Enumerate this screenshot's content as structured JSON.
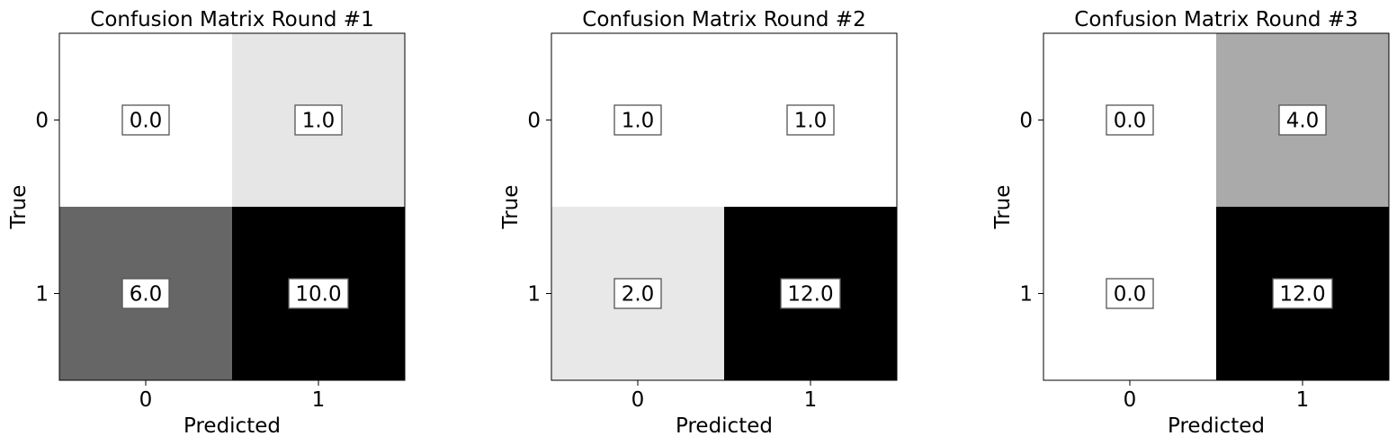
{
  "chart_data": [
    {
      "type": "heatmap",
      "title": "Confusion Matrix Round #1",
      "xlabel": "Predicted",
      "ylabel": "True",
      "x_categories": [
        "0",
        "1"
      ],
      "y_categories": [
        "0",
        "1"
      ],
      "values": [
        [
          0.0,
          1.0
        ],
        [
          6.0,
          10.0
        ]
      ],
      "value_labels": [
        [
          "0.0",
          "1.0"
        ],
        [
          "6.0",
          "10.0"
        ]
      ],
      "colormap": "Greys",
      "grid": false
    },
    {
      "type": "heatmap",
      "title": "Confusion Matrix Round #2",
      "xlabel": "Predicted",
      "ylabel": "True",
      "x_categories": [
        "0",
        "1"
      ],
      "y_categories": [
        "0",
        "1"
      ],
      "values": [
        [
          1.0,
          1.0
        ],
        [
          2.0,
          12.0
        ]
      ],
      "value_labels": [
        [
          "1.0",
          "1.0"
        ],
        [
          "2.0",
          "12.0"
        ]
      ],
      "colormap": "Greys",
      "grid": false
    },
    {
      "type": "heatmap",
      "title": "Confusion Matrix Round #3",
      "xlabel": "Predicted",
      "ylabel": "True",
      "x_categories": [
        "0",
        "1"
      ],
      "y_categories": [
        "0",
        "1"
      ],
      "values": [
        [
          0.0,
          4.0
        ],
        [
          0.0,
          12.0
        ]
      ],
      "value_labels": [
        [
          "0.0",
          "4.0"
        ],
        [
          "0.0",
          "12.0"
        ]
      ],
      "colormap": "Greys",
      "grid": false
    }
  ]
}
